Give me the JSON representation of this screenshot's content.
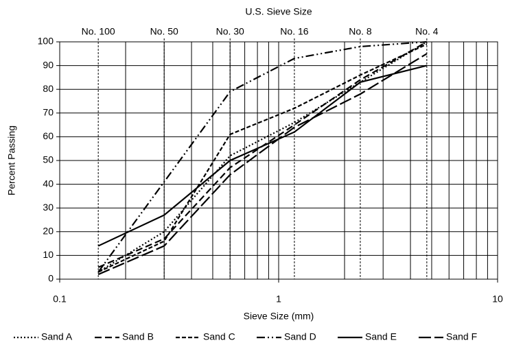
{
  "chart_data": {
    "type": "line",
    "log_x": true,
    "grid": true,
    "legend": "bottom",
    "title": "U.S. Sieve Size",
    "xlabel": "Sieve Size (mm)",
    "ylabel": "Percent Passing",
    "xlim": [
      0.1,
      10
    ],
    "xticks": [
      0.1,
      1,
      10
    ],
    "xminor_ticks": [
      0.2,
      0.3,
      0.4,
      0.5,
      0.6,
      0.7,
      0.8,
      0.9,
      2,
      3,
      4,
      5,
      6,
      7,
      8,
      9
    ],
    "x2ticks": [
      {
        "value": 0.15,
        "label": "No. 100"
      },
      {
        "value": 0.3,
        "label": "No. 50"
      },
      {
        "value": 0.6,
        "label": "No. 30"
      },
      {
        "value": 1.18,
        "label": "No. 16"
      },
      {
        "value": 2.36,
        "label": "No. 8"
      },
      {
        "value": 4.75,
        "label": "No. 4"
      }
    ],
    "ylim": [
      0,
      100
    ],
    "yticks": [
      0,
      10,
      20,
      30,
      40,
      50,
      60,
      70,
      80,
      90,
      100
    ],
    "x": [
      0.15,
      0.3,
      0.6,
      1.18,
      2.36,
      4.75
    ],
    "series": [
      {
        "name": "Sand A",
        "color": "#000000",
        "dash": "2 3",
        "values": [
          3,
          20,
          52,
          66,
          83,
          100
        ]
      },
      {
        "name": "Sand B",
        "color": "#000000",
        "dash": "10 5",
        "values": [
          5,
          17,
          47,
          65,
          84,
          100
        ]
      },
      {
        "name": "Sand C",
        "color": "#000000",
        "dash": "6 3",
        "values": [
          3,
          16,
          61,
          72,
          86,
          99
        ]
      },
      {
        "name": "Sand D",
        "color": "#000000",
        "dash": "12 4 2 4 2 4",
        "values": [
          3,
          41,
          79,
          93,
          98,
          100
        ]
      },
      {
        "name": "Sand E",
        "color": "#000000",
        "dash": "none",
        "values": [
          14,
          27,
          50,
          62,
          83,
          90
        ]
      },
      {
        "name": "Sand F",
        "color": "#000000",
        "dash": "18 5",
        "values": [
          2,
          14,
          44,
          64,
          78,
          95
        ]
      }
    ]
  }
}
